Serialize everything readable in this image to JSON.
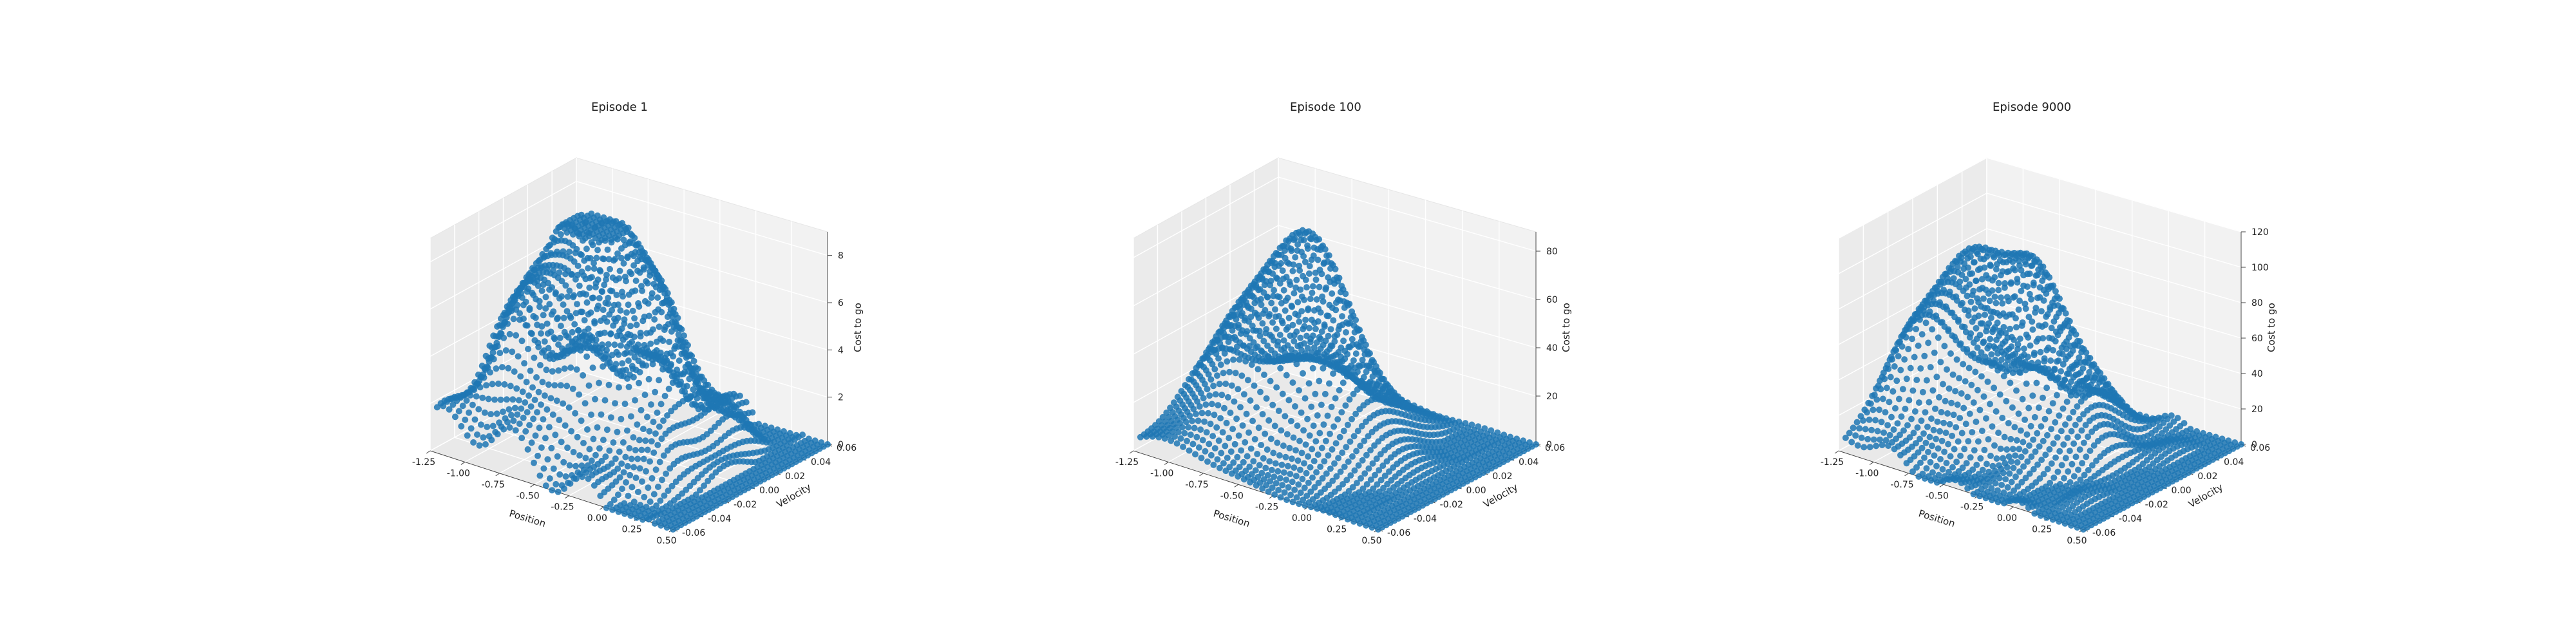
{
  "figure": {
    "background": "#ffffff",
    "point_color": "#1f77b4"
  },
  "chart_data": [
    {
      "type": "scatter3d",
      "title": "Episode 1",
      "xlabel": "Position",
      "ylabel": "Velocity",
      "zlabel": "Cost to go",
      "xlim": [
        -1.2,
        0.5
      ],
      "ylim": [
        -0.07,
        0.07
      ],
      "zlim": [
        0,
        9
      ],
      "xticks": [
        "-1.25",
        "-1.00",
        "-0.75",
        "-0.50",
        "-0.25",
        "0.00",
        "0.25",
        "0.50"
      ],
      "yticks": [
        "-0.06",
        "-0.04",
        "-0.02",
        "0.00",
        "0.02",
        "0.04",
        "0.06"
      ],
      "zticks": [
        "0",
        "2",
        "4",
        "6",
        "8"
      ],
      "grid": true,
      "surface": {
        "peak": 9.3,
        "sample_grid": [
          40,
          40
        ]
      }
    },
    {
      "type": "scatter3d",
      "title": "Episode 100",
      "xlabel": "Position",
      "ylabel": "Velocity",
      "zlabel": "Cost to go",
      "xlim": [
        -1.2,
        0.5
      ],
      "ylim": [
        -0.07,
        0.07
      ],
      "zlim": [
        0,
        88
      ],
      "xticks": [
        "-1.25",
        "-1.00",
        "-0.75",
        "-0.50",
        "-0.25",
        "0.00",
        "0.25",
        "0.50"
      ],
      "yticks": [
        "-0.06",
        "-0.04",
        "-0.02",
        "0.00",
        "0.02",
        "0.04",
        "0.06"
      ],
      "zticks": [
        "0",
        "20",
        "40",
        "60",
        "80"
      ],
      "grid": true,
      "surface": {
        "peak": 80,
        "sample_grid": [
          40,
          40
        ]
      }
    },
    {
      "type": "scatter3d",
      "title": "Episode 9000",
      "xlabel": "Position",
      "ylabel": "Velocity",
      "zlabel": "Cost to go",
      "xlim": [
        -1.2,
        0.5
      ],
      "ylim": [
        -0.07,
        0.07
      ],
      "zlim": [
        0,
        120
      ],
      "xticks": [
        "-1.25",
        "-1.00",
        "-0.75",
        "-0.50",
        "-0.25",
        "0.00",
        "0.25",
        "0.50"
      ],
      "yticks": [
        "-0.06",
        "-0.04",
        "-0.02",
        "0.00",
        "0.02",
        "0.04",
        "0.06"
      ],
      "zticks": [
        "0",
        "20",
        "40",
        "60",
        "80",
        "100",
        "120"
      ],
      "grid": true,
      "surface": {
        "peak": 110,
        "sample_grid": [
          40,
          40
        ]
      }
    }
  ]
}
